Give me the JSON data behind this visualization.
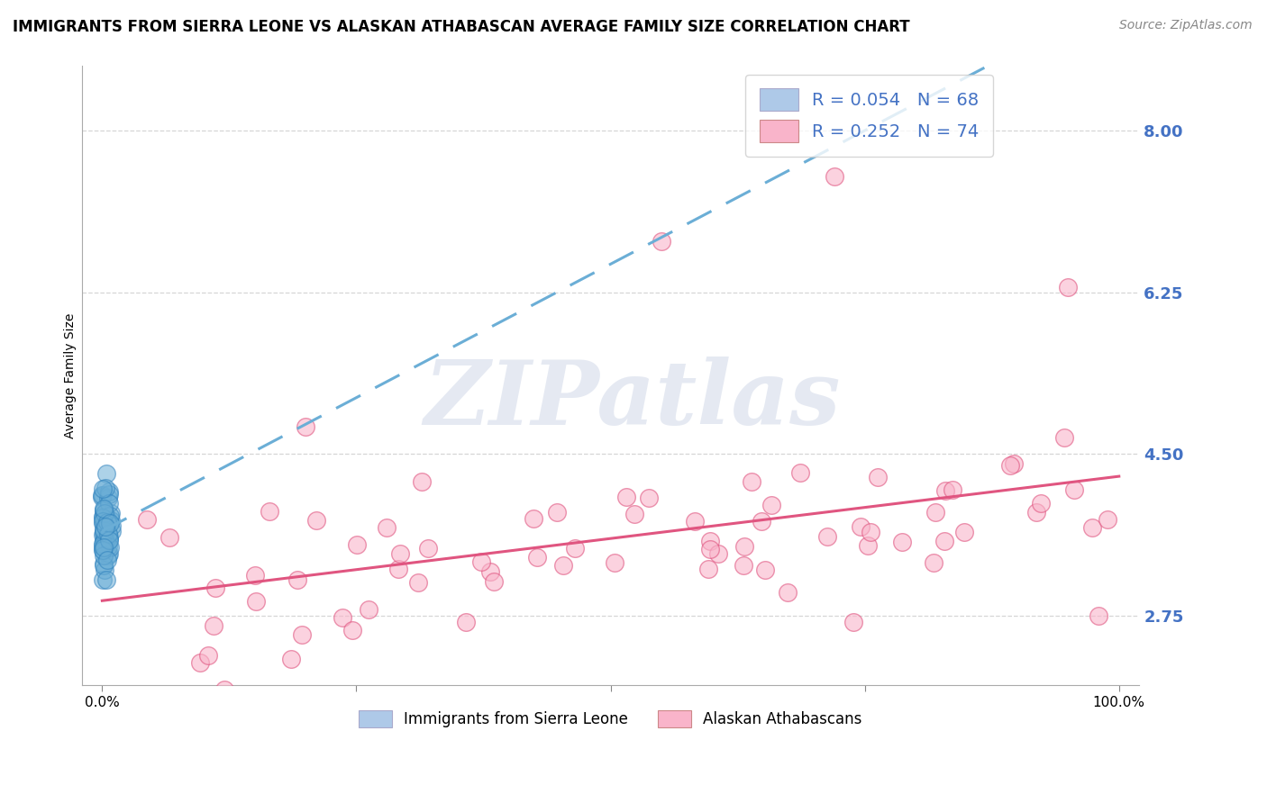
{
  "title": "IMMIGRANTS FROM SIERRA LEONE VS ALASKAN ATHABASCAN AVERAGE FAMILY SIZE CORRELATION CHART",
  "source": "Source: ZipAtlas.com",
  "ylabel": "Average Family Size",
  "xlim": [
    -0.02,
    1.02
  ],
  "ylim": [
    2.0,
    8.7
  ],
  "yticks": [
    2.75,
    4.5,
    6.25,
    8.0
  ],
  "series1_label": "Immigrants from Sierra Leone",
  "series1_R": 0.054,
  "series1_N": 68,
  "series1_scatter_color": "#6baed6",
  "series1_trend_color": "#6baed6",
  "series2_label": "Alaskan Athabascans",
  "series2_R": 0.252,
  "series2_N": 74,
  "series2_scatter_color": "#f9b4ca",
  "series2_trend_color": "#e05580",
  "watermark_text": "ZIPatlas",
  "background_color": "#ffffff",
  "grid_color": "#cccccc",
  "title_fontsize": 12,
  "source_fontsize": 10,
  "ylabel_fontsize": 10,
  "tick_fontsize": 11,
  "legend_fontsize": 14,
  "axis_label_color": "#4472c4",
  "legend_patch1_color": "#aec9e8",
  "legend_patch2_color": "#f9b4ca"
}
